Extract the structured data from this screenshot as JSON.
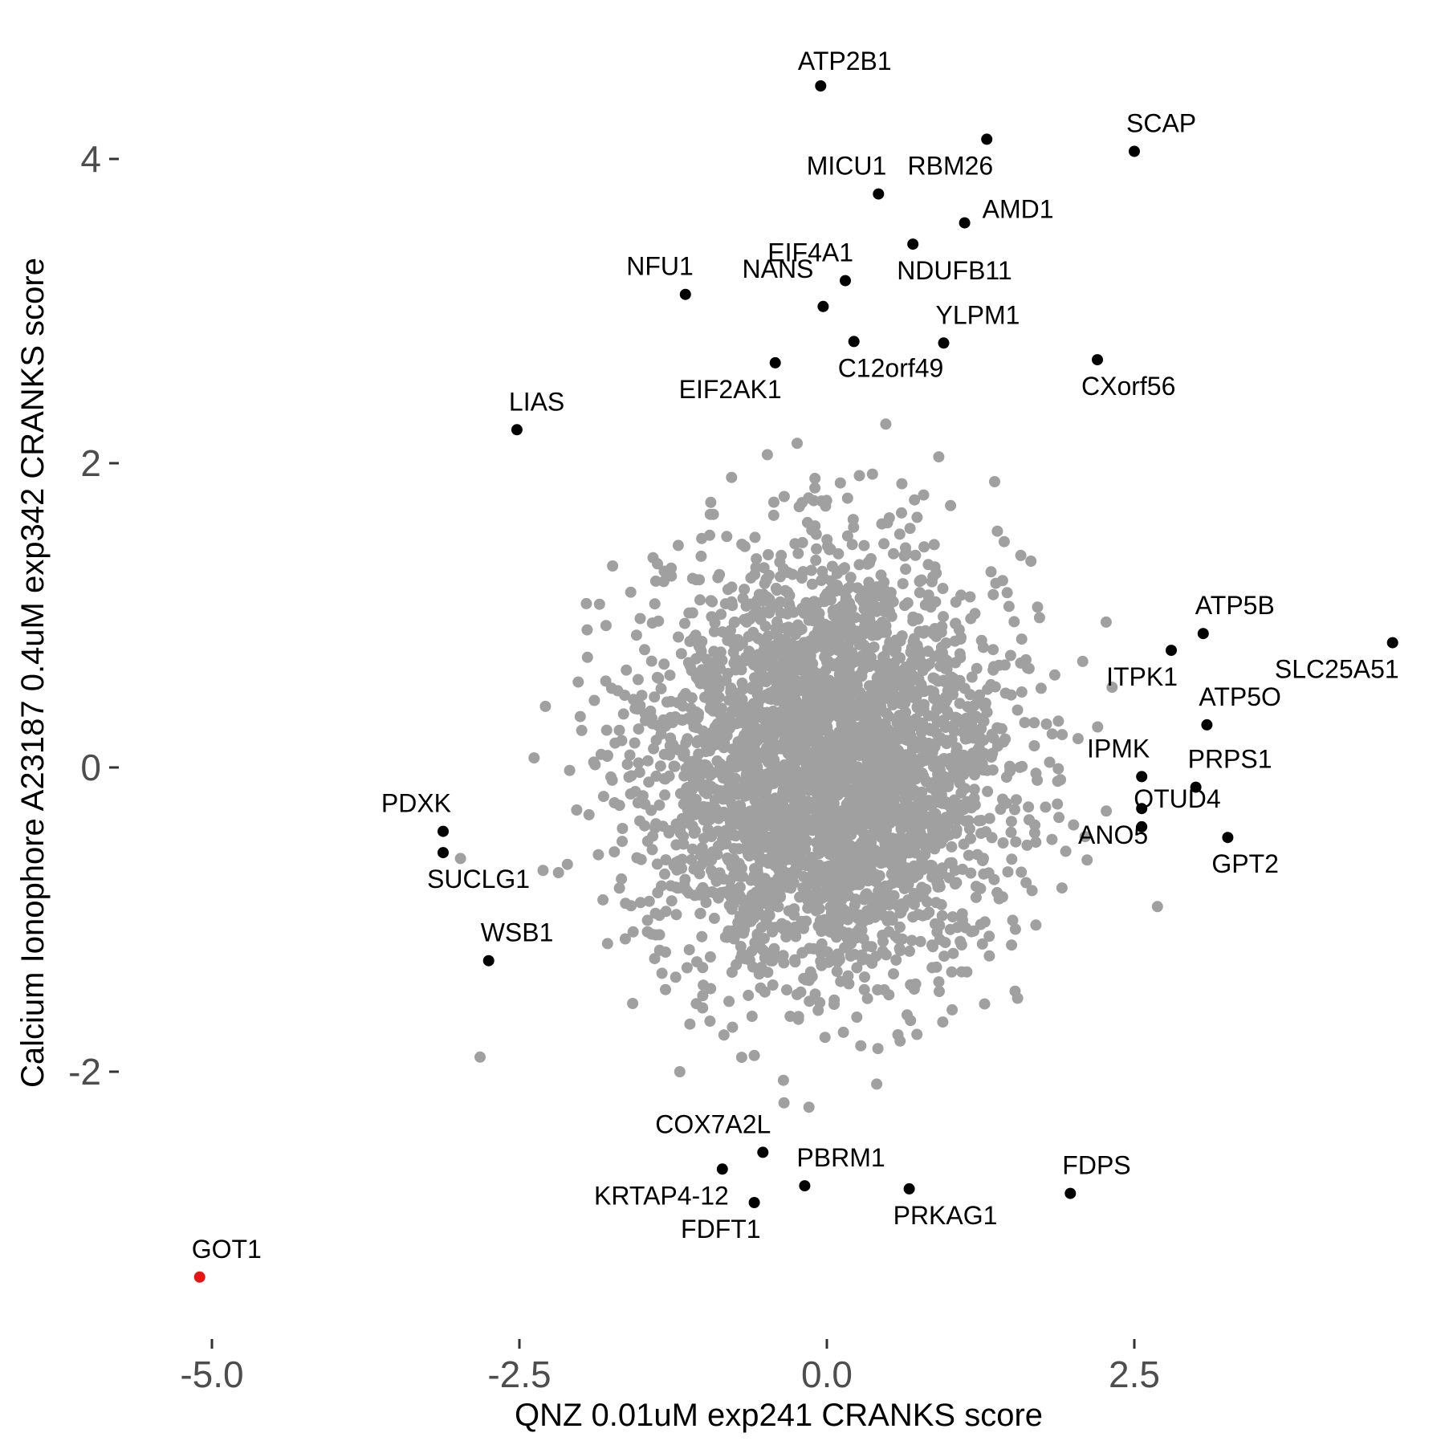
{
  "chart_data": {
    "type": "scatter",
    "title": "",
    "xlabel": "QNZ 0.01uM exp241 CRANKS score",
    "ylabel": "Calcium Ionophore A23187 0.4uM exp342 CRANKS score",
    "xlim": [
      -5.4,
      4.8
    ],
    "ylim": [
      -3.6,
      4.9
    ],
    "xticks": [
      -5.0,
      -2.5,
      0.0,
      2.5
    ],
    "xtick_labels": [
      "-5.0",
      "-2.5",
      "0.0",
      "2.5"
    ],
    "yticks": [
      -2,
      0,
      2,
      4
    ],
    "ytick_labels": [
      "-2",
      "0",
      "2",
      "4"
    ],
    "grid": false,
    "colors": {
      "background_genes": "#a0a0a0",
      "highlighted_genes": "#000000",
      "target_gene": "#e8140f"
    },
    "background_cloud": {
      "description_source": "dense grey cloud of non-labelled genes",
      "center": [
        0.0,
        0.0
      ],
      "sd": [
        0.72,
        0.68
      ]
    },
    "labeled_points": [
      {
        "gene": "ATP2B1",
        "x": -0.05,
        "y": 4.48,
        "color": "black"
      },
      {
        "gene": "SCAP",
        "x": 2.5,
        "y": 4.05,
        "color": "black"
      },
      {
        "gene": "RBM26",
        "x": 1.3,
        "y": 4.13,
        "color": "black"
      },
      {
        "gene": "MICU1",
        "x": 0.42,
        "y": 3.77,
        "color": "black"
      },
      {
        "gene": "AMD1",
        "x": 1.12,
        "y": 3.58,
        "color": "black"
      },
      {
        "gene": "NDUFB11",
        "x": 0.7,
        "y": 3.44,
        "color": "black"
      },
      {
        "gene": "EIF4A1",
        "x": 0.15,
        "y": 3.2,
        "color": "black"
      },
      {
        "gene": "NFU1",
        "x": -1.15,
        "y": 3.11,
        "color": "black"
      },
      {
        "gene": "NANS",
        "x": -0.03,
        "y": 3.03,
        "color": "black"
      },
      {
        "gene": "YLPM1",
        "x": 0.95,
        "y": 2.79,
        "color": "black"
      },
      {
        "gene": "C12orf49",
        "x": 0.22,
        "y": 2.8,
        "color": "black"
      },
      {
        "gene": "EIF2AK1",
        "x": -0.42,
        "y": 2.66,
        "color": "black"
      },
      {
        "gene": "CXorf56",
        "x": 2.2,
        "y": 2.68,
        "color": "black"
      },
      {
        "gene": "LIAS",
        "x": -2.52,
        "y": 2.22,
        "color": "black"
      },
      {
        "gene": "ATP5B",
        "x": 3.06,
        "y": 0.88,
        "color": "black"
      },
      {
        "gene": "SLC25A51",
        "x": 4.6,
        "y": 0.82,
        "color": "black"
      },
      {
        "gene": "ITPK1",
        "x": 2.8,
        "y": 0.77,
        "color": "black"
      },
      {
        "gene": "ATP5O",
        "x": 3.09,
        "y": 0.28,
        "color": "black"
      },
      {
        "gene": "IPMK",
        "x": 2.56,
        "y": -0.06,
        "color": "black"
      },
      {
        "gene": "PRPS1",
        "x": 3.0,
        "y": -0.13,
        "color": "black"
      },
      {
        "gene": "OTUD4",
        "x": 2.56,
        "y": -0.39,
        "color": "black"
      },
      {
        "gene": "GPT2",
        "x": 3.26,
        "y": -0.46,
        "color": "black"
      },
      {
        "gene": "ANO5",
        "x": 2.56,
        "y": -0.27,
        "color": "black"
      },
      {
        "gene": "PDXK",
        "x": -3.12,
        "y": -0.42,
        "color": "black"
      },
      {
        "gene": "SUCLG1",
        "x": -3.12,
        "y": -0.56,
        "color": "black"
      },
      {
        "gene": "WSB1",
        "x": -2.75,
        "y": -1.27,
        "color": "black"
      },
      {
        "gene": "COX7A2L",
        "x": -0.52,
        "y": -2.53,
        "color": "black"
      },
      {
        "gene": "KRTAP4-12",
        "x": -0.85,
        "y": -2.64,
        "color": "black"
      },
      {
        "gene": "PBRM1",
        "x": -0.18,
        "y": -2.75,
        "color": "black"
      },
      {
        "gene": "FDFT1",
        "x": -0.59,
        "y": -2.86,
        "color": "black"
      },
      {
        "gene": "PRKAG1",
        "x": 0.67,
        "y": -2.77,
        "color": "black"
      },
      {
        "gene": "FDPS",
        "x": 1.98,
        "y": -2.8,
        "color": "black"
      },
      {
        "gene": "GOT1",
        "x": -5.1,
        "y": -3.35,
        "color": "red"
      }
    ],
    "label_placement": {
      "ATP2B1": "top",
      "SCAP": "top-right",
      "RBM26": "bottom-left",
      "MICU1": "top-left",
      "AMD1": "right",
      "NDUFB11": "bottom-right",
      "EIF4A1": "top-left",
      "NFU1": "top-left",
      "NANS": "left-bottom",
      "YLPM1": "top-right",
      "C12orf49": "bottom-right",
      "EIF2AK1": "bottom-left",
      "CXorf56": "bottom-right",
      "LIAS": "top-right",
      "ATP5B": "top-right",
      "SLC25A51": "bottom-left",
      "ITPK1": "bottom-left",
      "ATP5O": "top-right",
      "IPMK": "top-left",
      "PRPS1": "top-right",
      "OTUD4": "top-right",
      "GPT2": "bottom-right",
      "ANO5": "bottom-left",
      "PDXK": "top-left",
      "SUCLG1": "bottom-right",
      "WSB1": "top-right",
      "COX7A2L": "top-left",
      "KRTAP4-12": "bottom-left",
      "PBRM1": "top-right",
      "FDFT1": "bottom-left",
      "PRKAG1": "bottom-right",
      "FDPS": "top-right",
      "GOT1": "top-right"
    }
  }
}
